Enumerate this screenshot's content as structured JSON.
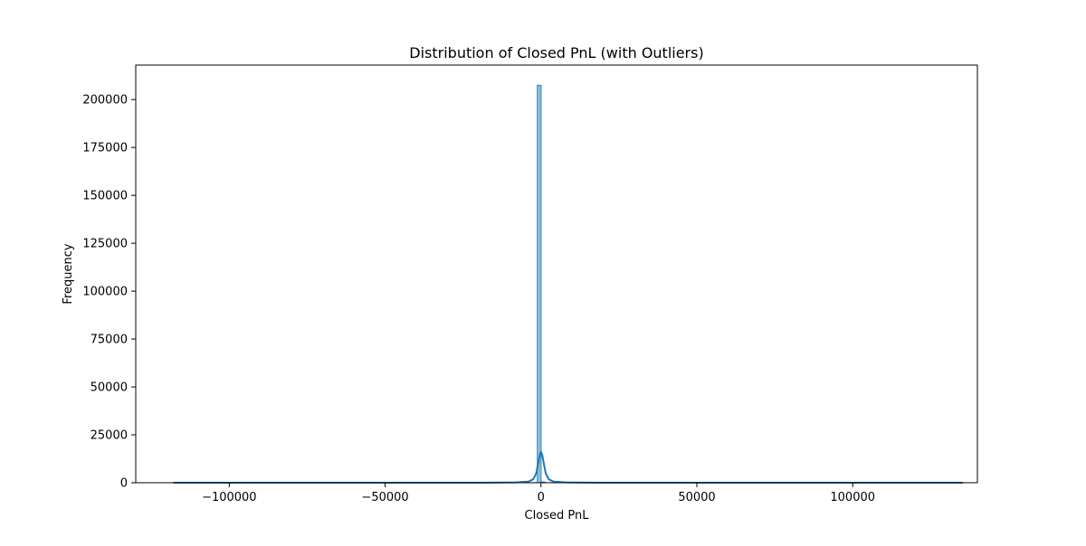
{
  "chart_data": {
    "type": "bar",
    "title": "Distribution of Closed PnL (with Outliers)",
    "xlabel": "Closed PnL",
    "ylabel": "Frequency",
    "xlim": [
      -130000,
      140000
    ],
    "ylim": [
      0,
      218000
    ],
    "x_ticks": [
      {
        "value": -100000,
        "label": "−100000"
      },
      {
        "value": -50000,
        "label": "−50000"
      },
      {
        "value": 0,
        "label": "0"
      },
      {
        "value": 50000,
        "label": "50000"
      },
      {
        "value": 100000,
        "label": "100000"
      }
    ],
    "y_ticks": [
      {
        "value": 0,
        "label": "0"
      },
      {
        "value": 25000,
        "label": "25000"
      },
      {
        "value": 50000,
        "label": "50000"
      },
      {
        "value": 75000,
        "label": "75000"
      },
      {
        "value": 100000,
        "label": "100000"
      },
      {
        "value": 125000,
        "label": "125000"
      },
      {
        "value": 150000,
        "label": "150000"
      },
      {
        "value": 175000,
        "label": "175000"
      },
      {
        "value": 200000,
        "label": "200000"
      }
    ],
    "grid": false,
    "data_range": [
      -117990,
      135329
    ],
    "bin_count": 200,
    "bins": [
      {
        "x0": -117990,
        "x1": -116723,
        "count": 1
      },
      {
        "x0": -56000,
        "x1": -54733,
        "count": 1
      },
      {
        "x0": -30000,
        "x1": -28733,
        "count": 2
      },
      {
        "x0": -12000,
        "x1": -10733,
        "count": 3
      },
      {
        "x0": -7500,
        "x1": -6233,
        "count": 6
      },
      {
        "x0": -5000,
        "x1": -3733,
        "count": 12
      },
      {
        "x0": -3733,
        "x1": -2466,
        "count": 30
      },
      {
        "x0": -2466,
        "x1": -1199,
        "count": 120
      },
      {
        "x0": -1199,
        "x1": 68,
        "count": 207500
      },
      {
        "x0": 68,
        "x1": 1335,
        "count": 400
      },
      {
        "x0": 1335,
        "x1": 2602,
        "count": 80
      },
      {
        "x0": 2602,
        "x1": 3869,
        "count": 25
      },
      {
        "x0": 3869,
        "x1": 5136,
        "count": 10
      },
      {
        "x0": 8000,
        "x1": 9267,
        "count": 4
      },
      {
        "x0": 15000,
        "x1": 16267,
        "count": 2
      },
      {
        "x0": 40000,
        "x1": 41267,
        "count": 1
      },
      {
        "x0": 134062,
        "x1": 135329,
        "count": 1
      }
    ],
    "kde": {
      "x": [
        -117990,
        -60000,
        -20000,
        -8000,
        -4000,
        -2500,
        -1500,
        -800,
        -400,
        0,
        400,
        800,
        1500,
        2500,
        4000,
        8000,
        20000,
        60000,
        135329
      ],
      "y": [
        0,
        0,
        30,
        150,
        600,
        1800,
        5000,
        11000,
        14500,
        16000,
        14500,
        11000,
        5000,
        1800,
        600,
        150,
        30,
        0,
        0
      ]
    },
    "colors": {
      "bar_fill": "#1f77b4",
      "bar_fill_opacity": 0.5,
      "bar_edge": "#1f77b4",
      "kde_line": "#1f77b4"
    }
  }
}
